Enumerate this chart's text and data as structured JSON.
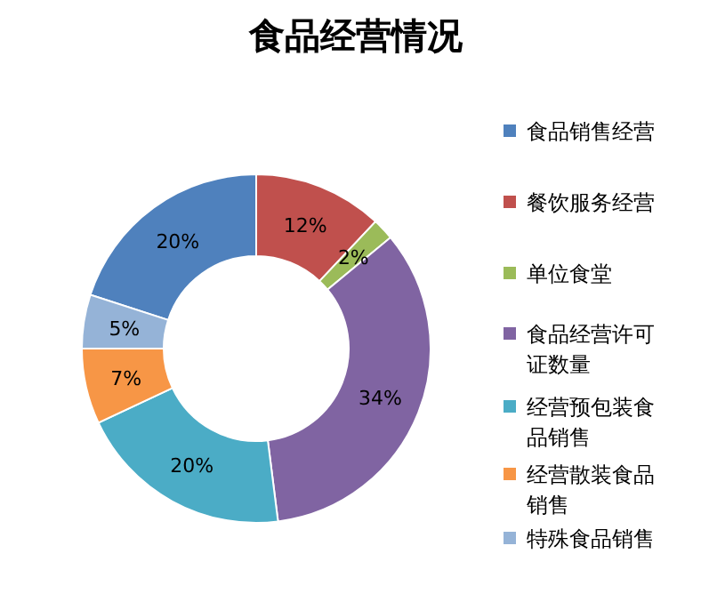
{
  "chart_data": {
    "type": "donut",
    "title": "食品经营情况",
    "categories": [
      "食品销售经营",
      "餐饮服务经营",
      "单位食堂",
      "食品经营许可证数量",
      "经营预包装食品销售",
      "经营散装食品销售",
      "特殊食品销售"
    ],
    "values": [
      20,
      12,
      2,
      34,
      20,
      7,
      5
    ],
    "value_labels": [
      "20%",
      "12%",
      "2%",
      "34%",
      "20%",
      "7%",
      "5%"
    ],
    "colors": [
      "#4f81bd",
      "#c0504d",
      "#9bbb59",
      "#8064a2",
      "#4bacc6",
      "#f79646",
      "#95b3d7"
    ],
    "legend": "right"
  }
}
